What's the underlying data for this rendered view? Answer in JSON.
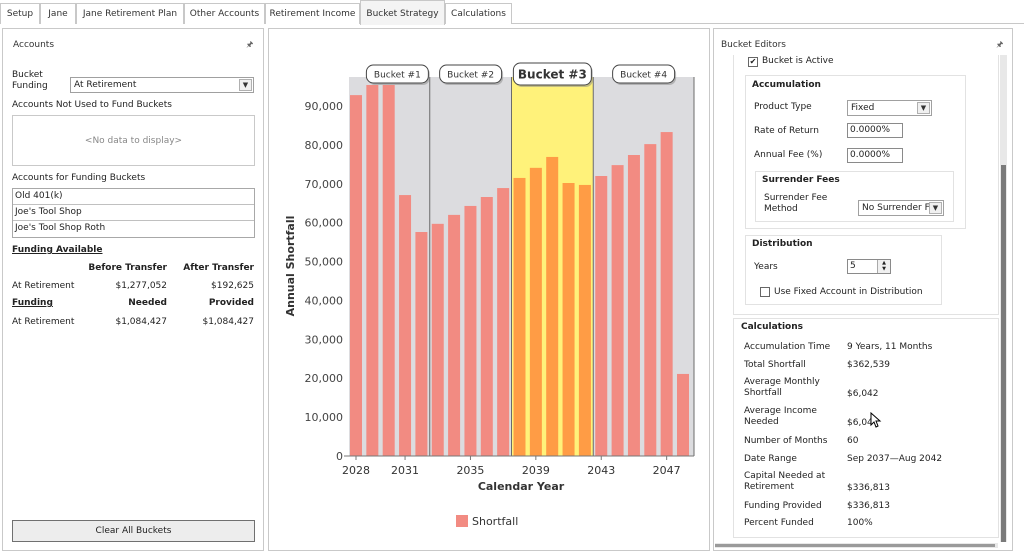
{
  "tabs": [
    {
      "label": "Setup",
      "active": false
    },
    {
      "label": "Jane",
      "active": false
    },
    {
      "label": "Jane Retirement Plan",
      "active": false
    },
    {
      "label": "Other Accounts",
      "active": false
    },
    {
      "label": "Retirement Income",
      "active": false
    },
    {
      "label": "Bucket Strategy",
      "active": true
    },
    {
      "label": "Calculations",
      "active": false
    }
  ],
  "accounts_panel": {
    "title": "Accounts",
    "pin_icon": "pin-icon",
    "bucket_funding_label": "Bucket Funding",
    "bucket_funding_label_line1": "Bucket",
    "bucket_funding_label_line2": "Funding",
    "bucket_funding_value": "At Retirement",
    "not_used_label": "Accounts Not Used to Fund Buckets",
    "not_used_empty": "<No data to display>",
    "funding_accounts_label": "Accounts for Funding Buckets",
    "funding_accounts": [
      "Old 401(k)",
      "Joe's Tool Shop",
      "Joe's Tool Shop Roth"
    ],
    "funding_available": {
      "heading": "Funding Available",
      "col1": "Before Transfer",
      "col2": "After Transfer",
      "row_label": "At Retirement",
      "before": "$1,277,052",
      "after": "$192,625"
    },
    "funding": {
      "heading": "Funding",
      "col1": "Needed",
      "col2": "Provided",
      "row_label": "At Retirement",
      "needed": "$1,084,427",
      "provided": "$1,084,427"
    },
    "clear_button": "Clear All Buckets"
  },
  "colors": {
    "bar": "#f28b82",
    "bar_selected": "#ff9c45",
    "bucket_bg": "#dcdcdf",
    "bucket_selected_bg": "#fff27a",
    "divider": "#6b6b6b"
  },
  "chart_data": {
    "type": "bar",
    "title": "",
    "xlabel": "Calendar Year",
    "ylabel": "Annual Shortfall",
    "ylim": [
      0,
      95000
    ],
    "yticks": [
      0,
      10000,
      20000,
      30000,
      40000,
      50000,
      60000,
      70000,
      80000,
      90000
    ],
    "ytick_labels": [
      "0",
      "10,000",
      "20,000",
      "30,000",
      "40,000",
      "50,000",
      "60,000",
      "70,000",
      "80,000",
      "90,000"
    ],
    "xtick_labels": [
      "2028",
      "2031",
      "2035",
      "2039",
      "2043",
      "2047"
    ],
    "categories": [
      2028,
      2029,
      2030,
      2031,
      2032,
      2033,
      2034,
      2035,
      2036,
      2037,
      2038,
      2039,
      2040,
      2041,
      2042,
      2043,
      2044,
      2045,
      2046,
      2047,
      2048
    ],
    "series": [
      {
        "name": "Shortfall",
        "values": [
          92800,
          95400,
          95400,
          67100,
          57600,
          59700,
          62000,
          64300,
          66600,
          68900,
          71500,
          74100,
          76900,
          70200,
          69700,
          72000,
          74800,
          77400,
          80200,
          83300,
          21100
        ]
      }
    ],
    "buckets": [
      {
        "label": "Bucket #1",
        "start": 2028,
        "end": 2032,
        "selected": false
      },
      {
        "label": "Bucket #2",
        "start": 2033,
        "end": 2037,
        "selected": false
      },
      {
        "label": "Bucket #3",
        "start": 2038,
        "end": 2042,
        "selected": true
      },
      {
        "label": "Bucket #4",
        "start": 2043,
        "end": 2048,
        "selected": false
      }
    ],
    "legend": {
      "entries": [
        "Shortfall"
      ],
      "position": "bottom"
    },
    "grid": false
  },
  "bucket_editors": {
    "title": "Bucket Editors",
    "bucket_active_label": "Bucket is Active",
    "bucket_active_checked": true,
    "accumulation": {
      "heading": "Accumulation",
      "product_type_label": "Product Type",
      "product_type_value": "Fixed",
      "rate_label": "Rate of Return",
      "rate_value": "0.0000%",
      "fee_label": "Annual Fee (%)",
      "fee_value": "0.0000%"
    },
    "surrender": {
      "heading": "Surrender Fees",
      "method_label_line1": "Surrender Fee",
      "method_label_line2": "Method",
      "method_value": "No Surrender F"
    },
    "distribution": {
      "heading": "Distribution",
      "years_label": "Years",
      "years_value": "5",
      "use_fixed_label": "Use Fixed Account in Distribution",
      "use_fixed_checked": false
    },
    "calculations": {
      "heading": "Calculations",
      "rows": [
        {
          "label": "Accumulation Time",
          "value": "9 Years, 11 Months"
        },
        {
          "label": "Total Shortfall",
          "value": "$362,539"
        },
        {
          "label": "Average Monthly Shortfall",
          "label_line1": "Average Monthly",
          "label_line2": "Shortfall",
          "value": "$6,042"
        },
        {
          "label": "Average Income Needed",
          "label_line1": "Average Income",
          "label_line2": "Needed",
          "value": "$6,04"
        },
        {
          "label": "Number of Months",
          "value": "60"
        },
        {
          "label": "Date Range",
          "value": "Sep 2037—Aug 2042"
        },
        {
          "label": "Capital Needed at Retirement",
          "label_line1": "Capital Needed at",
          "label_line2": "Retirement",
          "value": "$336,813"
        },
        {
          "label": "Funding Provided",
          "value": "$336,813"
        },
        {
          "label": "Percent Funded",
          "value": "100%"
        }
      ]
    }
  }
}
